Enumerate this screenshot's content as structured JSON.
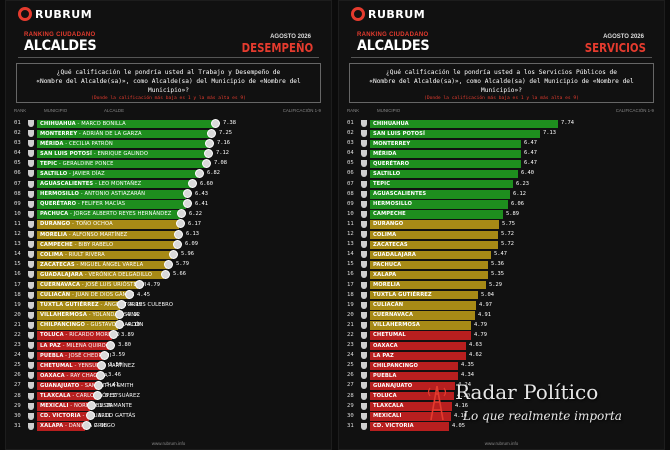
{
  "brand": "RUBRUM",
  "watermark": {
    "title": "Radar Político",
    "subtitle": "Lo que realmente importa"
  },
  "colors": {
    "green": "#1e8e1e",
    "olive": "#a78a16",
    "red": "#b81f1f",
    "accent": "#e53b2e"
  },
  "panels": [
    {
      "kicker": "RANKING CIUDADANO",
      "title": "ALCALDES",
      "period": "AGOSTO 2026",
      "section": "DESEMPEÑO",
      "question": "¿Qué calificación le pondría usted al Trabajo y Desempeño de\n«Nombre del Alcalde(sa)», como Alcalde(sa) del Municipio de «Nombre del Municipio»?",
      "note": "(Donde la calificación más baja es 1 y la más alta es 9)",
      "headers": {
        "rank": "RANK",
        "municipio": "MUNICIPIO",
        "alcalde": "ALCALDE",
        "score": "CALIFICACIÓN 1-9"
      },
      "footer": "www.rubrum.info",
      "rows": [
        {
          "rank": "01",
          "city": "CHIHUAHUA",
          "mayor": "MARCO BONILLA",
          "value": 7.38,
          "label": "7.38"
        },
        {
          "rank": "02",
          "city": "MONTERREY",
          "mayor": "ADRIÁN DE LA GARZA",
          "value": 7.25,
          "label": "7.25"
        },
        {
          "rank": "03",
          "city": "MÉRIDA",
          "mayor": "CECILIA PATRÓN",
          "value": 7.16,
          "label": "7.16"
        },
        {
          "rank": "04",
          "city": "SAN LUIS POTOSÍ",
          "mayor": "ENRIQUE GALINDO",
          "value": 7.12,
          "label": "7.12"
        },
        {
          "rank": "05",
          "city": "TEPIC",
          "mayor": "GERALDINE PONCE",
          "value": 7.08,
          "label": "7.08"
        },
        {
          "rank": "06",
          "city": "SALTILLO",
          "mayor": "JAVIER DÍAZ",
          "value": 6.82,
          "label": "6.82"
        },
        {
          "rank": "07",
          "city": "AGUASCALIENTES",
          "mayor": "LEO MONTAÑEZ",
          "value": 6.6,
          "label": "6.60"
        },
        {
          "rank": "08",
          "city": "HERMOSILLO",
          "mayor": "ANTONIO ASTIAZARÁN",
          "value": 6.43,
          "label": "6.43"
        },
        {
          "rank": "09",
          "city": "QUERÉTARO",
          "mayor": "FELIFER MACÍAS",
          "value": 6.41,
          "label": "6.41"
        },
        {
          "rank": "10",
          "city": "PACHUCA",
          "mayor": "JORGE ALBERTO REYES HERNÁNDEZ",
          "value": 6.22,
          "label": "6.22"
        },
        {
          "rank": "11",
          "city": "DURANGO",
          "mayor": "TOÑO OCHOA",
          "value": 6.17,
          "label": "6.17"
        },
        {
          "rank": "12",
          "city": "MORELIA",
          "mayor": "ALFONSO MARTÍNEZ",
          "value": 6.13,
          "label": "6.13"
        },
        {
          "rank": "13",
          "city": "CAMPECHE",
          "mayor": "BIBY RABELO",
          "value": 6.09,
          "label": "6.09"
        },
        {
          "rank": "14",
          "city": "COLIMA",
          "mayor": "RIULT RIVERA",
          "value": 5.96,
          "label": "5.96"
        },
        {
          "rank": "15",
          "city": "ZACATECAS",
          "mayor": "MIGUEL ÁNGEL VARELA",
          "value": 5.79,
          "label": "5.79"
        },
        {
          "rank": "16",
          "city": "GUADALAJARA",
          "mayor": "VERÓNICA DELGADILLO",
          "value": 5.66,
          "label": "5.66"
        },
        {
          "rank": "17",
          "city": "CUERNAVACA",
          "mayor": "JOSÉ LUIS URIÓSTEGUI",
          "value": 4.79,
          "label": "4.79"
        },
        {
          "rank": "18",
          "city": "CULIACÁN",
          "mayor": "JUAN DE DIOS GÁMEZ",
          "value": 4.45,
          "label": "4.45"
        },
        {
          "rank": "19",
          "city": "TUXTLA GUTIÉRREZ",
          "mayor": "ÁNGEL TORRES CULEBRO",
          "value": 4.19,
          "label": "4.19"
        },
        {
          "rank": "20",
          "city": "VILLAHERMOSA",
          "mayor": "YOLANDA OSUNA",
          "value": 4.12,
          "label": "4.12"
        },
        {
          "rank": "21",
          "city": "CHILPANCINGO",
          "mayor": "GUSTAVO ALARCÓN",
          "value": 4.1,
          "label": "4.10"
        },
        {
          "rank": "22",
          "city": "TOLUCA",
          "mayor": "RICARDO MORENO",
          "value": 3.89,
          "label": "3.89"
        },
        {
          "rank": "23",
          "city": "LA PAZ",
          "mayor": "MILENA QUIROGA",
          "value": 3.8,
          "label": "3.80"
        },
        {
          "rank": "24",
          "city": "PUEBLA",
          "mayor": "JOSÉ CHEDRAUI",
          "value": 3.59,
          "label": "3.59"
        },
        {
          "rank": "25",
          "city": "CHETUMAL",
          "mayor": "YENSUNNI MARTÍNEZ",
          "value": 3.5,
          "label": "3.50"
        },
        {
          "rank": "26",
          "city": "OAXACA",
          "mayor": "RAY CHAGOYA",
          "value": 3.46,
          "label": "3.46"
        },
        {
          "rank": "27",
          "city": "GUANAJUATO",
          "mayor": "SAMANTHA SMITH",
          "value": 3.41,
          "label": "3.41"
        },
        {
          "rank": "28",
          "city": "TLAXCALA",
          "mayor": "CARLOS LÓPEZ SUÁREZ",
          "value": 3.37,
          "label": "3.37"
        },
        {
          "rank": "29",
          "city": "MEXICALI",
          "mayor": "NORMA BUSTAMANTE",
          "value": 3.16,
          "label": "3.16"
        },
        {
          "rank": "30",
          "city": "CD. VICTORIA",
          "mayor": "EDUARDO GATTÁS",
          "value": 3.11,
          "label": "3.11"
        },
        {
          "rank": "31",
          "city": "XALAPA",
          "mayor": "DANIELA GRIEGO",
          "value": 2.98,
          "label": "2.98"
        }
      ]
    },
    {
      "kicker": "RANKING CIUDADANO",
      "title": "ALCALDES",
      "period": "AGOSTO 2026",
      "section": "SERVICIOS",
      "question": "¿Qué calificación le pondría usted a los Servicios Públicos de\n«Nombre del Alcalde(sa)», como Alcalde(sa) del Municipio de «Nombre del Municipio»?",
      "note": "(Donde la calificación más baja es 1 y la más alta es 9)",
      "headers": {
        "rank": "RANK",
        "municipio": "MUNICIPIO",
        "alcalde": "",
        "score": "CALIFICACIÓN 1-9"
      },
      "footer": "www.rubrum.info",
      "rows": [
        {
          "rank": "01",
          "city": "CHIHUAHUA",
          "mayor": "",
          "value": 7.74,
          "label": "7.74"
        },
        {
          "rank": "02",
          "city": "SAN LUIS POTOSÍ",
          "mayor": "",
          "value": 7.13,
          "label": "7.13"
        },
        {
          "rank": "03",
          "city": "MONTERREY",
          "mayor": "",
          "value": 6.47,
          "label": "6.47"
        },
        {
          "rank": "04",
          "city": "MÉRIDA",
          "mayor": "",
          "value": 6.47,
          "label": "6.47"
        },
        {
          "rank": "05",
          "city": "QUERÉTARO",
          "mayor": "",
          "value": 6.47,
          "label": "6.47"
        },
        {
          "rank": "06",
          "city": "SALTILLO",
          "mayor": "",
          "value": 6.4,
          "label": "6.40"
        },
        {
          "rank": "07",
          "city": "TEPIC",
          "mayor": "",
          "value": 6.23,
          "label": "6.23"
        },
        {
          "rank": "08",
          "city": "AGUASCALIENTES",
          "mayor": "",
          "value": 6.12,
          "label": "6.12"
        },
        {
          "rank": "09",
          "city": "HERMOSILLO",
          "mayor": "",
          "value": 6.06,
          "label": "6.06"
        },
        {
          "rank": "10",
          "city": "CAMPECHE",
          "mayor": "",
          "value": 5.89,
          "label": "5.89"
        },
        {
          "rank": "11",
          "city": "DURANGO",
          "mayor": "",
          "value": 5.75,
          "label": "5.75"
        },
        {
          "rank": "12",
          "city": "COLIMA",
          "mayor": "",
          "value": 5.72,
          "label": "5.72"
        },
        {
          "rank": "13",
          "city": "ZACATECAS",
          "mayor": "",
          "value": 5.72,
          "label": "5.72"
        },
        {
          "rank": "14",
          "city": "GUADALAJARA",
          "mayor": "",
          "value": 5.47,
          "label": "5.47"
        },
        {
          "rank": "15",
          "city": "PACHUCA",
          "mayor": "",
          "value": 5.36,
          "label": "5.36"
        },
        {
          "rank": "16",
          "city": "XALAPA",
          "mayor": "",
          "value": 5.35,
          "label": "5.35"
        },
        {
          "rank": "17",
          "city": "MORELIA",
          "mayor": "",
          "value": 5.29,
          "label": "5.29"
        },
        {
          "rank": "18",
          "city": "TUXTLA GUTIÉRREZ",
          "mayor": "",
          "value": 5.04,
          "label": "5.04"
        },
        {
          "rank": "19",
          "city": "CULIACÁN",
          "mayor": "",
          "value": 4.97,
          "label": "4.97"
        },
        {
          "rank": "20",
          "city": "CUERNAVACA",
          "mayor": "",
          "value": 4.91,
          "label": "4.91"
        },
        {
          "rank": "21",
          "city": "VILLAHERMOSA",
          "mayor": "",
          "value": 4.79,
          "label": "4.79"
        },
        {
          "rank": "22",
          "city": "CHETUMAL",
          "mayor": "",
          "value": 4.79,
          "label": "4.79"
        },
        {
          "rank": "23",
          "city": "OAXACA",
          "mayor": "",
          "value": 4.63,
          "label": "4.63"
        },
        {
          "rank": "24",
          "city": "LA PAZ",
          "mayor": "",
          "value": 4.62,
          "label": "4.62"
        },
        {
          "rank": "25",
          "city": "CHILPANCINGO",
          "mayor": "",
          "value": 4.35,
          "label": "4.35"
        },
        {
          "rank": "26",
          "city": "PUEBLA",
          "mayor": "",
          "value": 4.34,
          "label": "4.34"
        },
        {
          "rank": "27",
          "city": "GUANAJUATO",
          "mayor": "",
          "value": 4.24,
          "label": "4.24"
        },
        {
          "rank": "28",
          "city": "TOLUCA",
          "mayor": "",
          "value": 4.2,
          "label": "4.20"
        },
        {
          "rank": "29",
          "city": "TLAXCALA",
          "mayor": "",
          "value": 4.16,
          "label": "4.16"
        },
        {
          "rank": "30",
          "city": "MEXICALI",
          "mayor": "",
          "value": 4.1,
          "label": "4.10"
        },
        {
          "rank": "31",
          "city": "CD. VICTORIA",
          "mayor": "",
          "value": 4.05,
          "label": "4.05"
        }
      ]
    }
  ]
}
